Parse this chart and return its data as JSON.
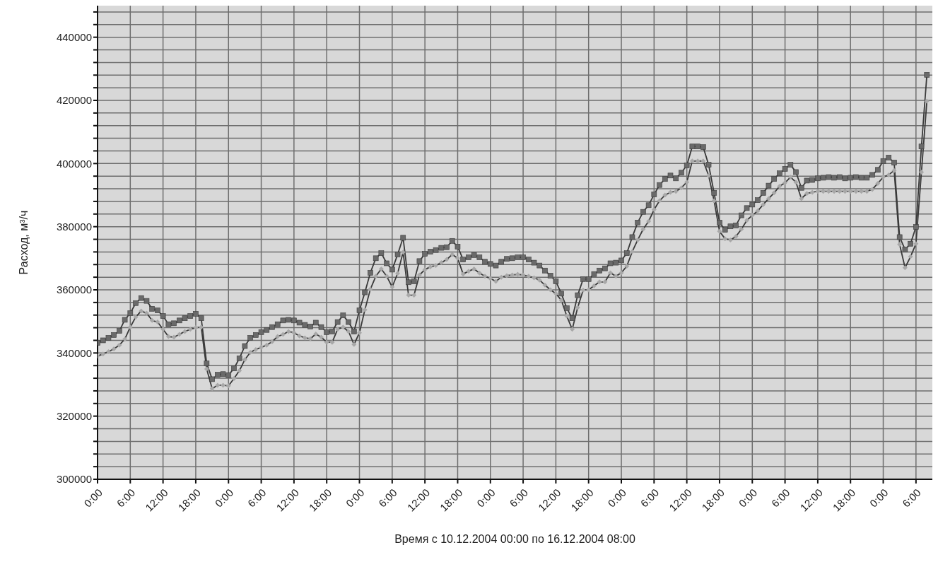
{
  "chart_data": {
    "type": "line",
    "xlabel": "Время с 10.12.2004 00:00 по 16.12.2004 08:00",
    "ylabel": "Расход, м³/ч",
    "x": [
      "2004-12-10T00:00",
      "2004-12-10T01:00",
      "2004-12-10T02:00",
      "2004-12-10T03:00",
      "2004-12-10T04:00",
      "2004-12-10T05:00",
      "2004-12-10T06:00",
      "2004-12-10T07:00",
      "2004-12-10T08:00",
      "2004-12-10T09:00",
      "2004-12-10T10:00",
      "2004-12-10T11:00",
      "2004-12-10T12:00",
      "2004-12-10T13:00",
      "2004-12-10T14:00",
      "2004-12-10T15:00",
      "2004-12-10T16:00",
      "2004-12-10T17:00",
      "2004-12-10T18:00",
      "2004-12-10T19:00",
      "2004-12-10T20:00",
      "2004-12-10T21:00",
      "2004-12-10T22:00",
      "2004-12-10T23:00",
      "2004-12-11T00:00",
      "2004-12-11T01:00",
      "2004-12-11T02:00",
      "2004-12-11T03:00",
      "2004-12-11T04:00",
      "2004-12-11T05:00",
      "2004-12-11T06:00",
      "2004-12-11T07:00",
      "2004-12-11T08:00",
      "2004-12-11T09:00",
      "2004-12-11T10:00",
      "2004-12-11T11:00",
      "2004-12-11T12:00",
      "2004-12-11T13:00",
      "2004-12-11T14:00",
      "2004-12-11T15:00",
      "2004-12-11T16:00",
      "2004-12-11T17:00",
      "2004-12-11T18:00",
      "2004-12-11T19:00",
      "2004-12-11T20:00",
      "2004-12-11T21:00",
      "2004-12-11T22:00",
      "2004-12-11T23:00",
      "2004-12-12T00:00",
      "2004-12-12T01:00",
      "2004-12-12T02:00",
      "2004-12-12T03:00",
      "2004-12-12T04:00",
      "2004-12-12T05:00",
      "2004-12-12T06:00",
      "2004-12-12T07:00",
      "2004-12-12T08:00",
      "2004-12-12T09:00",
      "2004-12-12T10:00",
      "2004-12-12T11:00",
      "2004-12-12T12:00",
      "2004-12-12T13:00",
      "2004-12-12T14:00",
      "2004-12-12T15:00",
      "2004-12-12T16:00",
      "2004-12-12T17:00",
      "2004-12-12T18:00",
      "2004-12-12T19:00",
      "2004-12-12T20:00",
      "2004-12-12T21:00",
      "2004-12-12T22:00",
      "2004-12-12T23:00",
      "2004-12-13T00:00",
      "2004-12-13T01:00",
      "2004-12-13T02:00",
      "2004-12-13T03:00",
      "2004-12-13T04:00",
      "2004-12-13T05:00",
      "2004-12-13T06:00",
      "2004-12-13T07:00",
      "2004-12-13T08:00",
      "2004-12-13T09:00",
      "2004-12-13T10:00",
      "2004-12-13T11:00",
      "2004-12-13T12:00",
      "2004-12-13T13:00",
      "2004-12-13T14:00",
      "2004-12-13T15:00",
      "2004-12-13T16:00",
      "2004-12-13T17:00",
      "2004-12-13T18:00",
      "2004-12-13T19:00",
      "2004-12-13T20:00",
      "2004-12-13T21:00",
      "2004-12-13T22:00",
      "2004-12-13T23:00",
      "2004-12-14T00:00",
      "2004-12-14T01:00",
      "2004-12-14T02:00",
      "2004-12-14T03:00",
      "2004-12-14T04:00",
      "2004-12-14T05:00",
      "2004-12-14T06:00",
      "2004-12-14T07:00",
      "2004-12-14T08:00",
      "2004-12-14T09:00",
      "2004-12-14T10:00",
      "2004-12-14T11:00",
      "2004-12-14T12:00",
      "2004-12-14T13:00",
      "2004-12-14T14:00",
      "2004-12-14T15:00",
      "2004-12-14T16:00",
      "2004-12-14T17:00",
      "2004-12-14T18:00",
      "2004-12-14T19:00",
      "2004-12-14T20:00",
      "2004-12-14T21:00",
      "2004-12-14T22:00",
      "2004-12-14T23:00",
      "2004-12-15T00:00",
      "2004-12-15T01:00",
      "2004-12-15T02:00",
      "2004-12-15T03:00",
      "2004-12-15T04:00",
      "2004-12-15T05:00",
      "2004-12-15T06:00",
      "2004-12-15T07:00",
      "2004-12-15T08:00",
      "2004-12-15T09:00",
      "2004-12-15T10:00",
      "2004-12-15T11:00",
      "2004-12-15T12:00",
      "2004-12-15T13:00",
      "2004-12-15T14:00",
      "2004-12-15T15:00",
      "2004-12-15T16:00",
      "2004-12-15T17:00",
      "2004-12-15T18:00",
      "2004-12-15T19:00",
      "2004-12-15T20:00",
      "2004-12-15T21:00",
      "2004-12-15T22:00",
      "2004-12-15T23:00",
      "2004-12-16T00:00",
      "2004-12-16T01:00",
      "2004-12-16T02:00",
      "2004-12-16T03:00",
      "2004-12-16T04:00",
      "2004-12-16T05:00",
      "2004-12-16T06:00",
      "2004-12-16T07:00",
      "2004-12-16T08:00"
    ],
    "series": [
      {
        "color": "#a8a8a8",
        "marker": "diamond",
        "values": [
          339000,
          339700,
          340400,
          341300,
          342500,
          344400,
          348200,
          351400,
          353300,
          352600,
          350300,
          349800,
          347500,
          345200,
          345000,
          345900,
          346800,
          347500,
          348000,
          348200,
          334900,
          328700,
          329800,
          329800,
          329600,
          331900,
          334400,
          337900,
          340200,
          341100,
          341800,
          342500,
          343600,
          345200,
          345900,
          346800,
          346400,
          345400,
          344800,
          344500,
          346000,
          345000,
          343400,
          343400,
          347500,
          348200,
          346800,
          342700,
          346400,
          353700,
          360200,
          364300,
          366600,
          364300,
          360900,
          365200,
          371900,
          358300,
          358300,
          364700,
          366400,
          367300,
          367700,
          368600,
          369600,
          371200,
          370000,
          365000,
          365900,
          366600,
          365300,
          364300,
          363600,
          362700,
          364000,
          364500,
          364700,
          364900,
          364700,
          364300,
          363800,
          363100,
          361500,
          360000,
          358800,
          356700,
          351700,
          347500,
          354400,
          359900,
          360000,
          361300,
          362500,
          362500,
          365400,
          364300,
          365400,
          367500,
          372100,
          375800,
          379200,
          381700,
          385400,
          388200,
          390000,
          390900,
          391200,
          392300,
          394100,
          400800,
          400800,
          400800,
          396200,
          388200,
          378500,
          376200,
          375800,
          376900,
          379200,
          382000,
          383600,
          385000,
          387000,
          388900,
          390700,
          392800,
          393900,
          395700,
          394100,
          388900,
          390500,
          390900,
          391200,
          391200,
          391200,
          391200,
          391200,
          391200,
          391200,
          391200,
          391200,
          391200,
          391800,
          393700,
          395700,
          396400,
          397800,
          374400,
          367000,
          370500,
          374600,
          397300,
          419800
        ]
      },
      {
        "color": "#6a6a6a",
        "marker": "square",
        "values": [
          343200,
          344000,
          344800,
          345700,
          347000,
          350500,
          352600,
          355800,
          357400,
          356500,
          354000,
          353500,
          351700,
          349100,
          349400,
          350300,
          351000,
          351700,
          352400,
          351000,
          336700,
          331700,
          333100,
          333300,
          333000,
          335100,
          338300,
          342200,
          344800,
          345700,
          346600,
          347300,
          348200,
          349100,
          350300,
          350500,
          350300,
          349600,
          348900,
          348400,
          349600,
          348200,
          346600,
          346800,
          349800,
          351900,
          349800,
          346800,
          353500,
          359200,
          365400,
          370000,
          371600,
          368400,
          366400,
          371200,
          376500,
          362400,
          362700,
          369100,
          371400,
          372100,
          372600,
          373300,
          373500,
          375500,
          373700,
          369600,
          370300,
          371000,
          370300,
          368900,
          368200,
          367700,
          368900,
          369800,
          370000,
          370300,
          370300,
          369600,
          368600,
          367700,
          366100,
          364500,
          362700,
          358800,
          354200,
          351000,
          358300,
          363400,
          363400,
          365000,
          366100,
          366800,
          368400,
          368600,
          369300,
          371600,
          376700,
          381300,
          384700,
          386800,
          390200,
          393200,
          395100,
          396200,
          395300,
          397100,
          399400,
          405400,
          405400,
          405200,
          399600,
          390700,
          381300,
          379000,
          380100,
          380400,
          383600,
          385900,
          387000,
          388400,
          390700,
          393000,
          395100,
          396900,
          398300,
          399600,
          397300,
          392300,
          394600,
          394800,
          395300,
          395500,
          395700,
          395500,
          395700,
          395300,
          395500,
          395700,
          395500,
          395500,
          396400,
          398000,
          400800,
          401900,
          400300,
          376700,
          372800,
          374600,
          379900,
          405400,
          428100
        ]
      }
    ],
    "xlim": [
      "2004-12-10T00:00",
      "2004-12-16T09:00"
    ],
    "xticks": [
      {
        "value": "2004-12-10T00:00",
        "label": "0:00"
      },
      {
        "value": "2004-12-10T06:00",
        "label": "6:00"
      },
      {
        "value": "2004-12-10T12:00",
        "label": "12:00"
      },
      {
        "value": "2004-12-10T18:00",
        "label": "18:00"
      },
      {
        "value": "2004-12-11T00:00",
        "label": "0:00"
      },
      {
        "value": "2004-12-11T06:00",
        "label": "6:00"
      },
      {
        "value": "2004-12-11T12:00",
        "label": "12:00"
      },
      {
        "value": "2004-12-11T18:00",
        "label": "18:00"
      },
      {
        "value": "2004-12-12T00:00",
        "label": "0:00"
      },
      {
        "value": "2004-12-12T06:00",
        "label": "6:00"
      },
      {
        "value": "2004-12-12T12:00",
        "label": "12:00"
      },
      {
        "value": "2004-12-12T18:00",
        "label": "18:00"
      },
      {
        "value": "2004-12-13T00:00",
        "label": "0:00"
      },
      {
        "value": "2004-12-13T06:00",
        "label": "6:00"
      },
      {
        "value": "2004-12-13T12:00",
        "label": "12:00"
      },
      {
        "value": "2004-12-13T18:00",
        "label": "18:00"
      },
      {
        "value": "2004-12-14T00:00",
        "label": "0:00"
      },
      {
        "value": "2004-12-14T06:00",
        "label": "6:00"
      },
      {
        "value": "2004-12-14T12:00",
        "label": "12:00"
      },
      {
        "value": "2004-12-14T18:00",
        "label": "18:00"
      },
      {
        "value": "2004-12-15T00:00",
        "label": "0:00"
      },
      {
        "value": "2004-12-15T06:00",
        "label": "6:00"
      },
      {
        "value": "2004-12-15T12:00",
        "label": "12:00"
      },
      {
        "value": "2004-12-15T18:00",
        "label": "18:00"
      },
      {
        "value": "2004-12-16T00:00",
        "label": "0:00"
      },
      {
        "value": "2004-12-16T06:00",
        "label": "6:00"
      }
    ],
    "ylim": [
      300000,
      450000
    ],
    "yticks": [
      300000,
      {
        "value": 304000,
        "label": null
      },
      {
        "value": 308000,
        "label": null
      },
      {
        "value": 312000,
        "label": null
      },
      {
        "value": 316000,
        "label": null
      },
      320000,
      {
        "value": 324000,
        "label": null
      },
      {
        "value": 328000,
        "label": null
      },
      {
        "value": 332000,
        "label": null
      },
      {
        "value": 336000,
        "label": null
      },
      340000,
      {
        "value": 344000,
        "label": null
      },
      {
        "value": 348000,
        "label": null
      },
      {
        "value": 352000,
        "label": null
      },
      {
        "value": 356000,
        "label": null
      },
      360000,
      {
        "value": 364000,
        "label": null
      },
      {
        "value": 368000,
        "label": null
      },
      {
        "value": 372000,
        "label": null
      },
      {
        "value": 376000,
        "label": null
      },
      380000,
      {
        "value": 384000,
        "label": null
      },
      {
        "value": 388000,
        "label": null
      },
      {
        "value": 392000,
        "label": null
      },
      {
        "value": 396000,
        "label": null
      },
      400000,
      {
        "value": 404000,
        "label": null
      },
      {
        "value": 408000,
        "label": null
      },
      {
        "value": 412000,
        "label": null
      },
      {
        "value": 416000,
        "label": null
      },
      420000,
      {
        "value": 424000,
        "label": null
      },
      {
        "value": 428000,
        "label": null
      },
      {
        "value": 432000,
        "label": null
      },
      {
        "value": 436000,
        "label": null
      },
      440000,
      {
        "value": 444000,
        "label": null
      },
      {
        "value": 448000,
        "label": null
      }
    ],
    "grid": true
  }
}
